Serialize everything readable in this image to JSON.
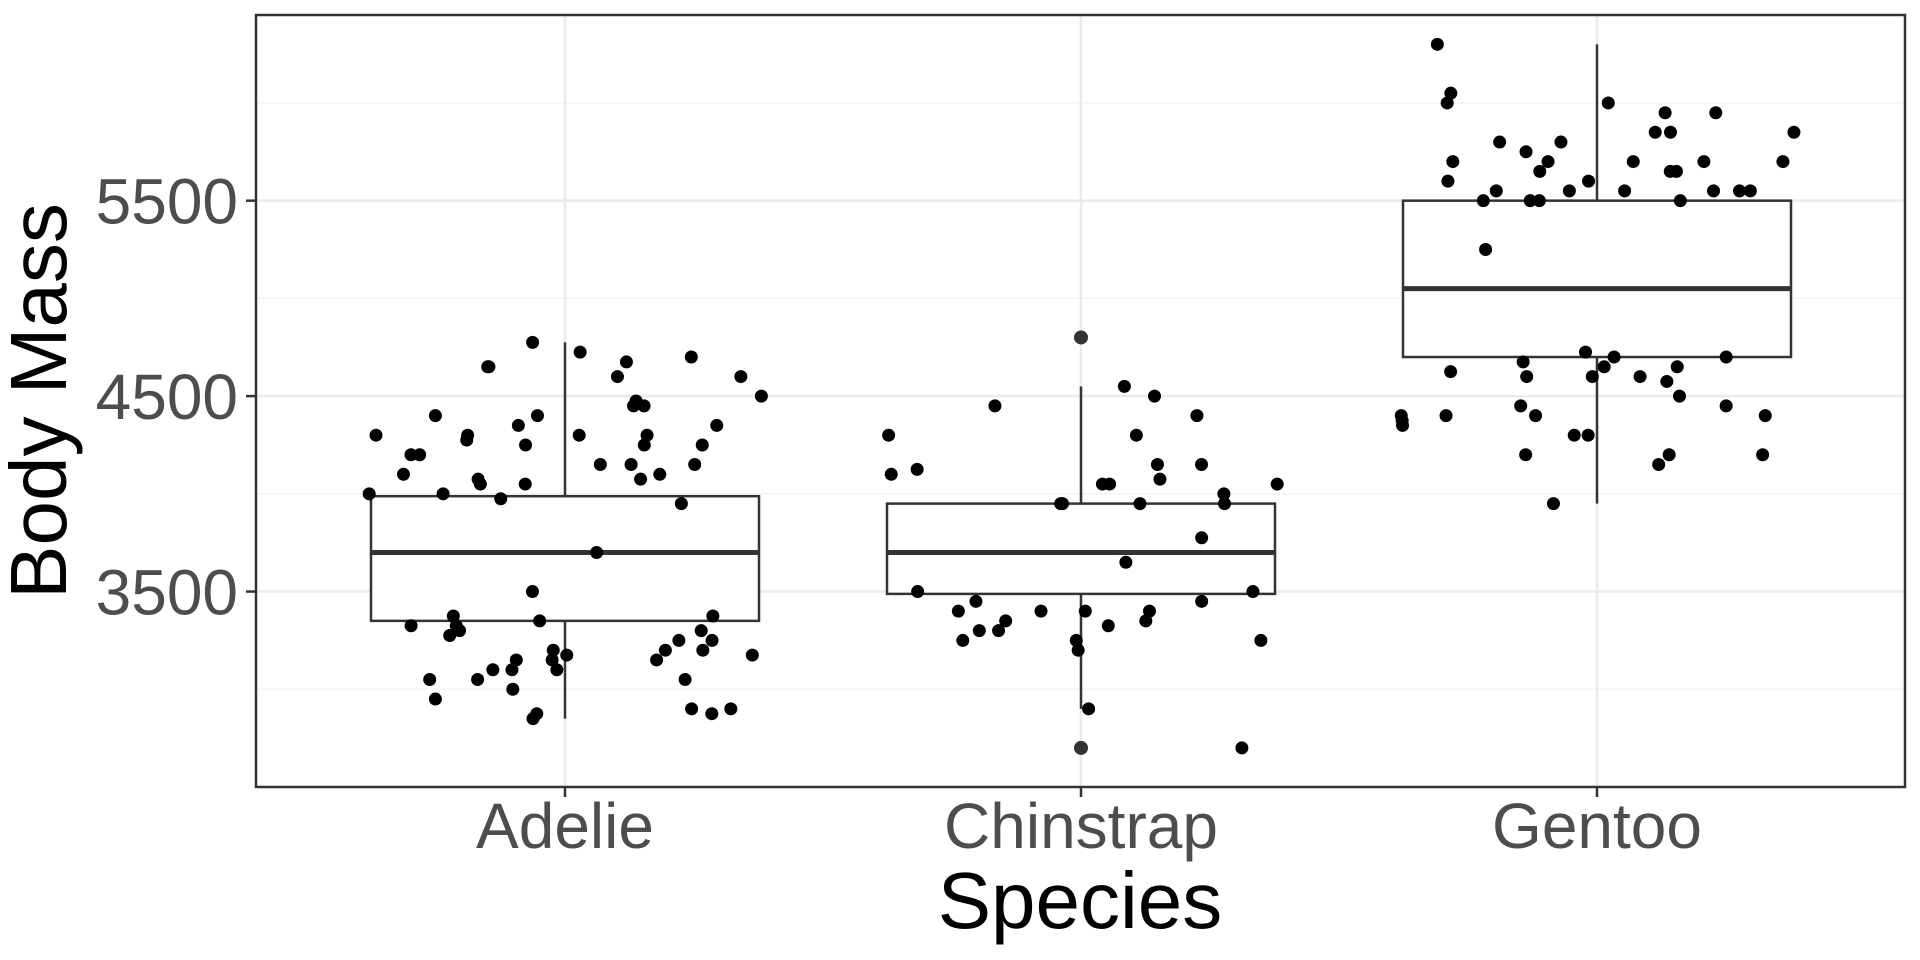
{
  "chart_data": {
    "type": "boxplot",
    "xlabel": "Species",
    "ylabel": "Body Mass",
    "categories": [
      "Adelie",
      "Chinstrap",
      "Gentoo"
    ],
    "ylim": [
      2500,
      6450
    ],
    "yticks": [
      3500,
      4500,
      5500
    ],
    "grid": true,
    "boxes": [
      {
        "category": "Adelie",
        "whisker_low": 2850,
        "q1": 3350,
        "median": 3700,
        "q3": 3988,
        "whisker_high": 4775,
        "outliers": []
      },
      {
        "category": "Chinstrap",
        "whisker_low": 2900,
        "q1": 3488,
        "median": 3700,
        "q3": 3950,
        "whisker_high": 4550,
        "outliers": [
          2700,
          4800
        ]
      },
      {
        "category": "Gentoo",
        "whisker_low": 3950,
        "q1": 4700,
        "median": 5050,
        "q3": 5500,
        "whisker_high": 6300,
        "outliers": []
      }
    ],
    "points": [
      {
        "category": "Adelie",
        "values": [
          4675,
          4650,
          4600,
          4500,
          4475,
          4450,
          4400,
          4350,
          4300,
          4150,
          4100,
          3975,
          3950,
          4000,
          3700,
          3300,
          3275,
          3250,
          3250,
          3300,
          3325,
          3200,
          3150,
          3100,
          3050,
          3000,
          2900,
          2875,
          2850,
          2875,
          2900,
          2950,
          3050,
          3100,
          3150,
          3175,
          3175,
          3150,
          3200,
          3325,
          3350,
          3375,
          4700,
          4650,
          4300,
          4250,
          4250,
          4200,
          4150,
          4100,
          4075,
          4050,
          4450,
          4300,
          4350,
          4250,
          4775,
          4600,
          4400,
          4300,
          4275,
          4200,
          4150,
          4000,
          4050,
          4075,
          3500,
          3375,
          3050,
          3100,
          4725,
          3200
        ]
      },
      {
        "category": "Chinstrap",
        "values": [
          3650,
          4075,
          4100,
          4050,
          3950,
          3400,
          3350,
          3300,
          3250,
          3250,
          3250,
          2900,
          2700,
          4550,
          4300,
          4300,
          3950,
          3400,
          3450,
          4500,
          4450,
          4400,
          4050,
          3200,
          3400,
          3325,
          3400,
          3950,
          4050,
          4150,
          4125,
          3500,
          3500,
          3300,
          3950,
          4150,
          3350,
          4000,
          3450,
          3775
        ]
      },
      {
        "category": "Gentoo",
        "values": [
          5800,
          5550,
          4350,
          4600,
          4500,
          4700,
          5550,
          5850,
          5700,
          5550,
          4450,
          4400,
          5800,
          6000,
          5850,
          5850,
          5950,
          4600,
          4150,
          4200,
          4200,
          4625,
          5550,
          5500,
          4575,
          4300,
          5750,
          5650,
          5650,
          5700,
          5550,
          5500,
          4400,
          4700,
          5700,
          5650,
          4650,
          4450,
          5950,
          4200,
          4300,
          5600,
          5700,
          5550,
          4400,
          4375,
          4600,
          3950,
          6300,
          6050,
          6000,
          5600,
          5700,
          5500,
          4650,
          5500,
          5250,
          4725,
          4400,
          4675
        ]
      }
    ]
  }
}
